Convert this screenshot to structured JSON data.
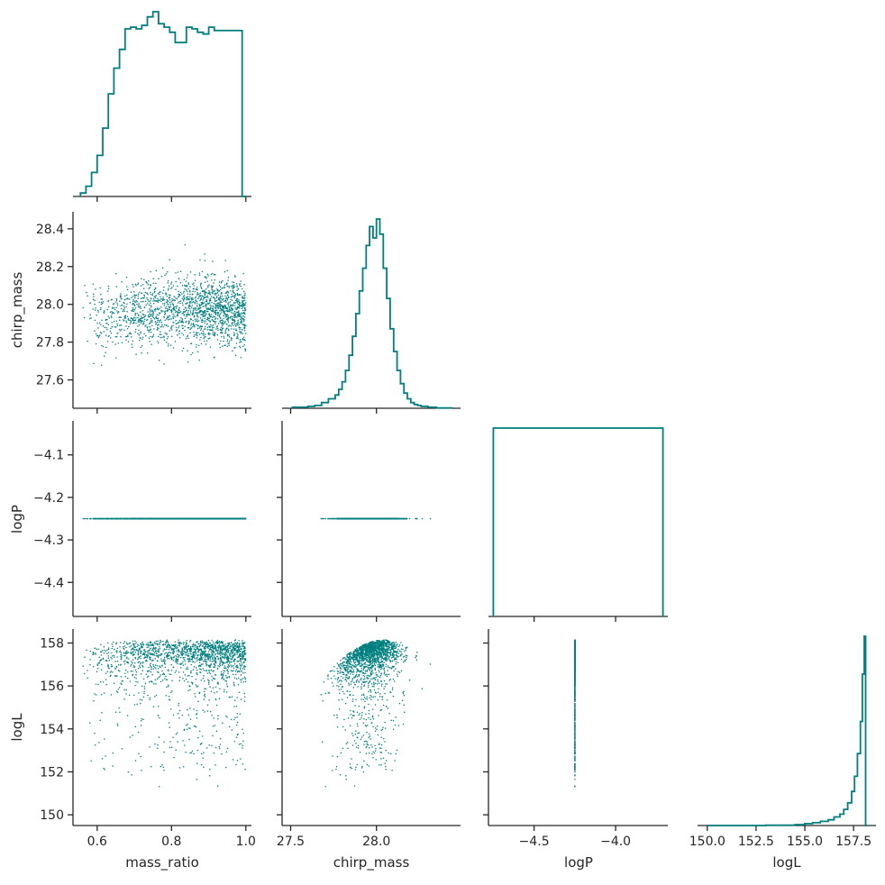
{
  "chart_data": {
    "type": "scatter",
    "layout": "corner-pairplot",
    "variables": [
      "mass_ratio",
      "chirp_mass",
      "logP",
      "logL"
    ],
    "color": "#007f7f",
    "grid": false,
    "axes": {
      "mass_ratio": {
        "range": [
          0.535,
          1.015
        ],
        "ticks": [
          0.6,
          0.8,
          1.0
        ],
        "tick_labels": [
          "0.6",
          "0.8",
          "1.0"
        ]
      },
      "chirp_mass": {
        "range": [
          27.45,
          28.49
        ],
        "ticks": [
          27.6,
          27.8,
          28.0,
          28.2,
          28.4
        ],
        "tick_labels": [
          "27.6",
          "27.8",
          "28.0",
          "28.2",
          "28.4"
        ]
      },
      "chirp_mass_x": {
        "range": [
          27.45,
          28.49
        ],
        "ticks": [
          27.5,
          28.0
        ],
        "tick_labels": [
          "27.5",
          "28.0"
        ]
      },
      "logP": {
        "range": [
          -4.48,
          -4.02
        ],
        "ticks": [
          -4.1,
          -4.2,
          -4.3,
          -4.4
        ],
        "tick_labels": [
          "−4.1",
          "−4.2",
          "−4.3",
          "−4.4"
        ]
      },
      "logP_x": {
        "range": [
          -4.78,
          -3.68
        ],
        "ticks": [
          -4.5,
          -4.0
        ],
        "tick_labels": [
          "−4.5",
          "−4.0"
        ]
      },
      "logL": {
        "range": [
          149.5,
          158.65
        ],
        "ticks": [
          150,
          152,
          154,
          156,
          158
        ],
        "tick_labels": [
          "150",
          "152",
          "154",
          "156",
          "158"
        ]
      },
      "logL_x": {
        "range": [
          149.5,
          158.65
        ],
        "ticks": [
          150.0,
          152.5,
          155.0,
          157.5
        ],
        "tick_labels": [
          "150.0",
          "152.5",
          "155.0",
          "157.5"
        ]
      }
    },
    "histograms": {
      "mass_ratio": {
        "bin_edges": [
          0.555,
          0.57,
          0.585,
          0.6,
          0.615,
          0.63,
          0.645,
          0.66,
          0.675,
          0.69,
          0.705,
          0.72,
          0.735,
          0.75,
          0.765,
          0.78,
          0.795,
          0.81,
          0.825,
          0.84,
          0.855,
          0.87,
          0.885,
          0.9,
          0.915,
          0.93,
          0.945,
          0.96,
          0.975,
          0.99,
          1.0
        ],
        "density": [
          0.02,
          0.06,
          0.14,
          0.24,
          0.4,
          0.6,
          0.75,
          0.86,
          0.98,
          0.99,
          0.98,
          1.0,
          1.05,
          1.08,
          1.01,
          0.99,
          0.96,
          0.9,
          0.9,
          0.99,
          0.98,
          0.96,
          0.95,
          0.99,
          0.97,
          0.97,
          0.97,
          0.97,
          0.97,
          0.0
        ]
      },
      "chirp_mass": {
        "bin_edges": [
          27.51,
          27.6,
          27.64,
          27.68,
          27.72,
          27.76,
          27.78,
          27.8,
          27.82,
          27.84,
          27.86,
          27.88,
          27.9,
          27.92,
          27.94,
          27.96,
          27.98,
          28.0,
          28.02,
          28.04,
          28.06,
          28.08,
          28.1,
          28.12,
          28.14,
          28.16,
          28.18,
          28.2,
          28.22,
          28.24,
          28.26,
          28.3,
          28.35,
          28.44
        ],
        "density": [
          0.005,
          0.01,
          0.015,
          0.03,
          0.05,
          0.07,
          0.1,
          0.14,
          0.2,
          0.28,
          0.38,
          0.5,
          0.62,
          0.74,
          0.86,
          0.96,
          0.9,
          1.0,
          0.92,
          0.74,
          0.58,
          0.42,
          0.3,
          0.2,
          0.13,
          0.08,
          0.05,
          0.03,
          0.02,
          0.015,
          0.01,
          0.005,
          0.002
        ]
      },
      "logP": {
        "bin_edges": [
          -4.75,
          -3.71
        ],
        "density": [
          1.0
        ]
      },
      "logL": {
        "bin_edges": [
          150.0,
          153.0,
          154.5,
          155.0,
          155.4,
          155.8,
          156.2,
          156.5,
          156.8,
          157.0,
          157.2,
          157.4,
          157.55,
          157.7,
          157.85,
          157.95,
          158.05,
          158.12,
          158.2
        ],
        "density": [
          0.0,
          0.002,
          0.005,
          0.01,
          0.015,
          0.022,
          0.03,
          0.045,
          0.06,
          0.085,
          0.12,
          0.18,
          0.26,
          0.38,
          0.55,
          0.8,
          1.0,
          0.0
        ]
      }
    },
    "scatter_points_description": "MCMC samples shown as small dots; 1800 samples per panel, logP constant at -4.25"
  }
}
